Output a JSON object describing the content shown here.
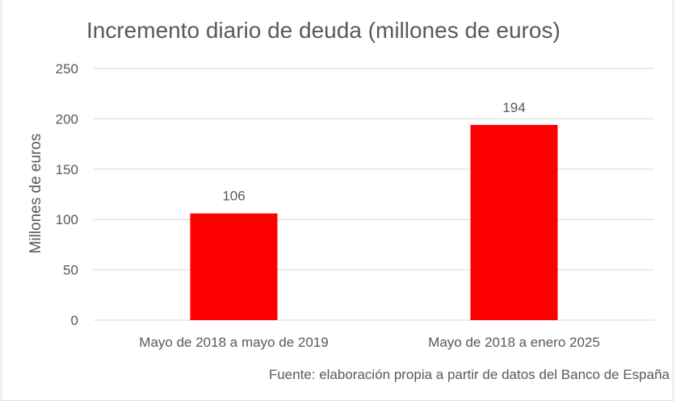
{
  "chart_data": {
    "type": "bar",
    "title": "Incremento diario de deuda (millones de euros)",
    "xlabel": "",
    "ylabel": "Millones de euros",
    "categories": [
      "Mayo de 2018 a mayo de 2019",
      "Mayo de 2018 a enero 2025"
    ],
    "values": [
      106,
      194
    ],
    "data_labels": [
      "106",
      "194"
    ],
    "ylim": [
      0,
      250
    ],
    "yticks": [
      "0",
      "50",
      "100",
      "150",
      "200",
      "250"
    ],
    "grid": true,
    "bar_color": "#ff0000",
    "source": "Fuente: elaboración propia a partir de datos del Banco de España"
  }
}
